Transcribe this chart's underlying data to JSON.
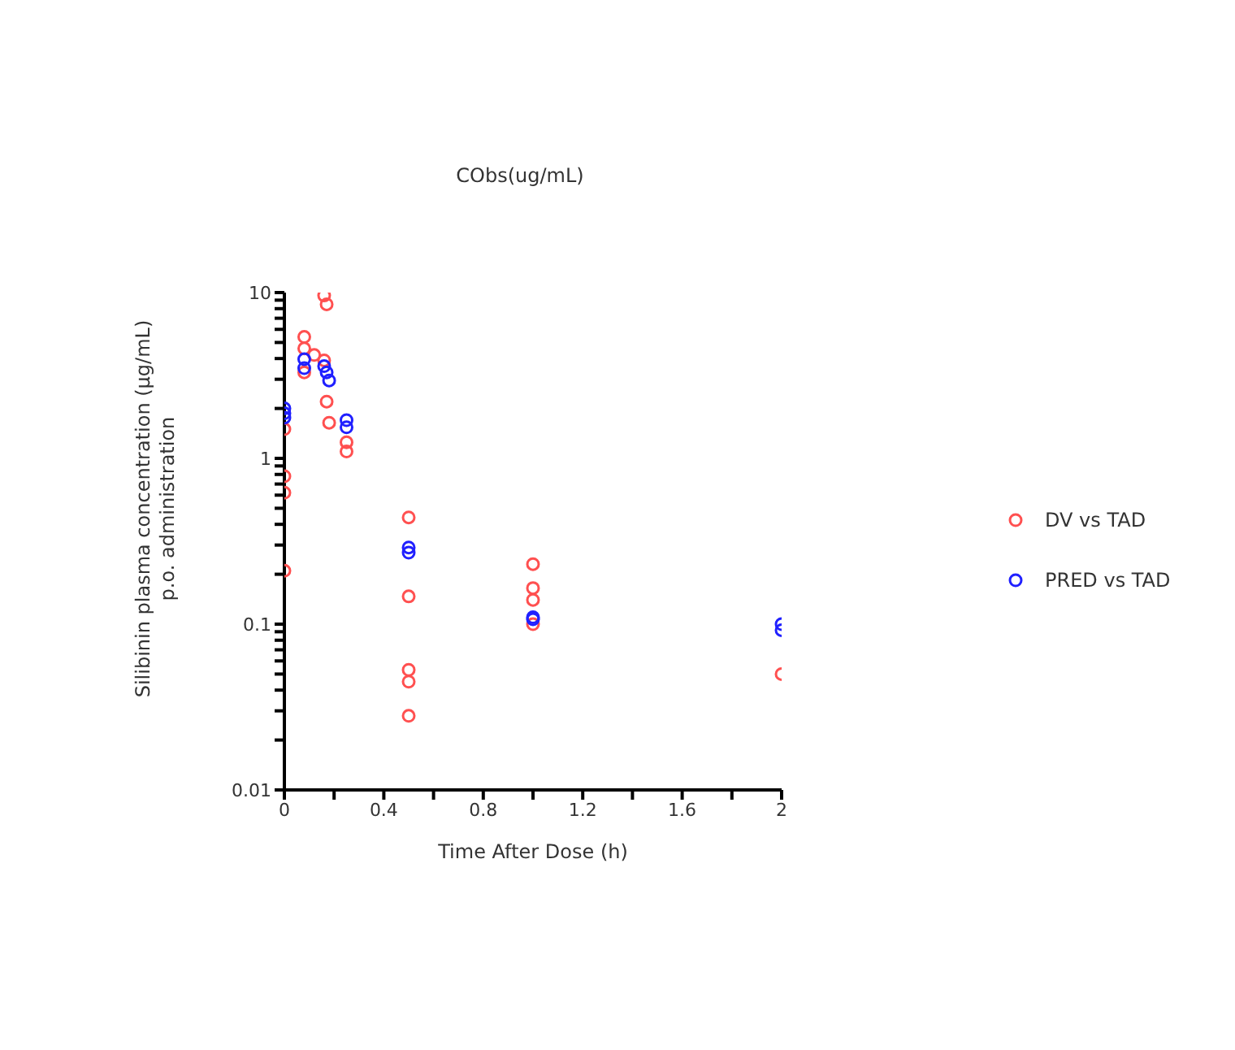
{
  "chart_data": {
    "type": "scatter",
    "title": "CObs(ug/mL)",
    "xlabel": "Time After Dose (h)",
    "ylabel": "Silibinin plasma concentration (µg/mL)\np.o. administration",
    "log": "y",
    "marker": "circle",
    "legend": "right",
    "grid": false,
    "xlim": [
      0,
      2
    ],
    "xticks": [
      0,
      {
        "value": 0.2,
        "label": null
      },
      0.4,
      {
        "value": 0.6,
        "label": null
      },
      0.8,
      {
        "value": 1,
        "label": null
      },
      1.2,
      {
        "value": 1.4,
        "label": null
      },
      1.6,
      {
        "value": 1.8,
        "label": null
      },
      2
    ],
    "ylim": [
      0.01,
      10
    ],
    "yticks": [
      0.01,
      {
        "value": 0.02,
        "label": null
      },
      {
        "value": 0.03,
        "label": null
      },
      {
        "value": 0.04,
        "label": null
      },
      {
        "value": 0.05,
        "label": null
      },
      {
        "value": 0.06,
        "label": null
      },
      {
        "value": 0.07,
        "label": null
      },
      {
        "value": 0.08,
        "label": null
      },
      {
        "value": 0.09,
        "label": null
      },
      0.1,
      {
        "value": 0.2,
        "label": null
      },
      {
        "value": 0.3,
        "label": null
      },
      {
        "value": 0.4,
        "label": null
      },
      {
        "value": 0.5,
        "label": null
      },
      {
        "value": 0.6,
        "label": null
      },
      {
        "value": 0.7,
        "label": null
      },
      {
        "value": 0.8,
        "label": null
      },
      {
        "value": 0.9,
        "label": null
      },
      1,
      {
        "value": 2,
        "label": null
      },
      {
        "value": 3,
        "label": null
      },
      {
        "value": 4,
        "label": null
      },
      {
        "value": 5,
        "label": null
      },
      {
        "value": 6,
        "label": null
      },
      {
        "value": 7,
        "label": null
      },
      {
        "value": 8,
        "label": null
      },
      {
        "value": 9,
        "label": null
      },
      10
    ],
    "series": [
      {
        "name": "DV vs TAD",
        "color": "#ff5050",
        "x": [
          0,
          0,
          0,
          0,
          0.08,
          0.08,
          0.08,
          0.12,
          0.16,
          0.16,
          0.17,
          0.17,
          0.18,
          0.25,
          0.25,
          0.5,
          0.5,
          0.5,
          0.5,
          0.5,
          1,
          1,
          1,
          1,
          2
        ],
        "values": [
          1.5,
          0.78,
          0.62,
          0.21,
          5.4,
          4.6,
          3.3,
          4.2,
          9.6,
          3.9,
          2.2,
          8.5,
          1.64,
          1.25,
          1.1,
          0.44,
          0.147,
          0.053,
          0.045,
          0.028,
          0.23,
          0.165,
          0.14,
          0.1,
          0.05
        ]
      },
      {
        "name": "PRED vs TAD",
        "color": "#2020ff",
        "x": [
          0,
          0,
          0,
          0.08,
          0.08,
          0.16,
          0.17,
          0.18,
          0.25,
          0.25,
          0.5,
          0.5,
          1,
          1,
          2,
          2
        ],
        "values": [
          2.0,
          1.87,
          1.76,
          3.96,
          3.5,
          3.6,
          3.3,
          2.95,
          1.7,
          1.54,
          0.29,
          0.27,
          0.11,
          0.107,
          0.1,
          0.092
        ]
      }
    ]
  }
}
